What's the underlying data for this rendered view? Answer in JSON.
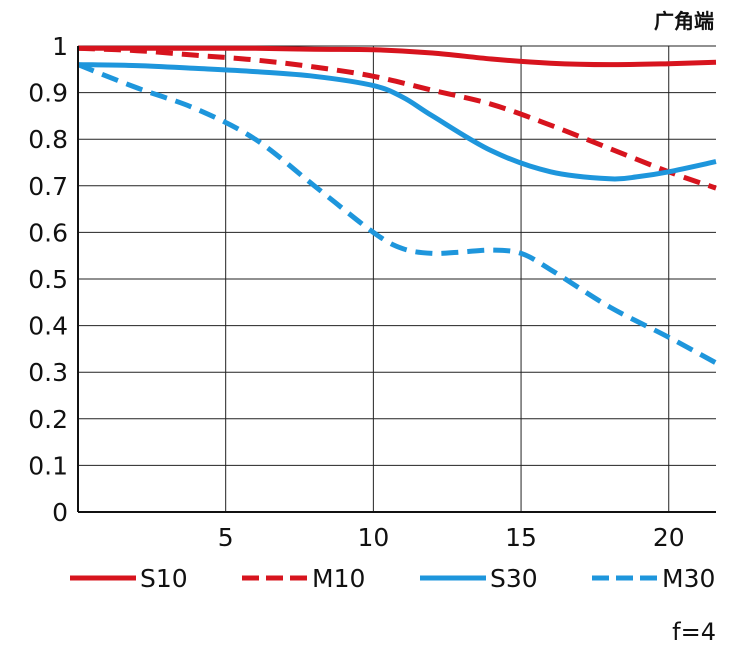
{
  "chart_data": {
    "type": "line",
    "title": "广角端",
    "annotation": "f=4",
    "xlim": [
      0,
      21.6
    ],
    "ylim": [
      0,
      1
    ],
    "x_ticks": [
      5,
      10,
      15,
      20
    ],
    "y_ticks": [
      {
        "value": 0,
        "label": "0"
      },
      {
        "value": 0.1,
        "label": "0.1"
      },
      {
        "value": 0.2,
        "label": "0.2"
      },
      {
        "value": 0.3,
        "label": "0.3"
      },
      {
        "value": 0.4,
        "label": "0.4"
      },
      {
        "value": 0.5,
        "label": "0.5"
      },
      {
        "value": 0.6,
        "label": "0.6"
      },
      {
        "value": 0.7,
        "label": "0.7"
      },
      {
        "value": 0.8,
        "label": "0.8"
      },
      {
        "value": 0.9,
        "label": "0.9"
      },
      {
        "value": 1,
        "label": "1"
      }
    ],
    "grid": true,
    "legend_position": "bottom",
    "series": [
      {
        "name": "S10",
        "color": "#d7141e",
        "style": "solid",
        "x": [
          0,
          2,
          4,
          6,
          8,
          10,
          12,
          14,
          16,
          18,
          20,
          21.6
        ],
        "y": [
          0.995,
          0.995,
          0.995,
          0.995,
          0.993,
          0.992,
          0.985,
          0.972,
          0.963,
          0.96,
          0.962,
          0.965
        ]
      },
      {
        "name": "M10",
        "color": "#d7141e",
        "style": "dashed",
        "x": [
          0,
          2,
          4,
          6,
          8,
          10,
          12,
          14,
          16,
          18,
          20,
          21.6
        ],
        "y": [
          0.995,
          0.99,
          0.98,
          0.97,
          0.955,
          0.935,
          0.905,
          0.875,
          0.83,
          0.78,
          0.73,
          0.695
        ]
      },
      {
        "name": "S30",
        "color": "#1e96dc",
        "style": "solid",
        "x": [
          0,
          2,
          4,
          6,
          8,
          10,
          11,
          12,
          14,
          16,
          18,
          19,
          20,
          21.6
        ],
        "y": [
          0.96,
          0.958,
          0.952,
          0.945,
          0.935,
          0.915,
          0.89,
          0.85,
          0.775,
          0.73,
          0.715,
          0.72,
          0.73,
          0.752
        ]
      },
      {
        "name": "M30",
        "color": "#1e96dc",
        "style": "dashed",
        "x": [
          0,
          2,
          4,
          6,
          8,
          10,
          11,
          12,
          13,
          14,
          15,
          16,
          18,
          20,
          21.6
        ],
        "y": [
          0.96,
          0.91,
          0.865,
          0.8,
          0.7,
          0.6,
          0.565,
          0.555,
          0.558,
          0.562,
          0.555,
          0.52,
          0.44,
          0.375,
          0.32
        ]
      }
    ]
  }
}
